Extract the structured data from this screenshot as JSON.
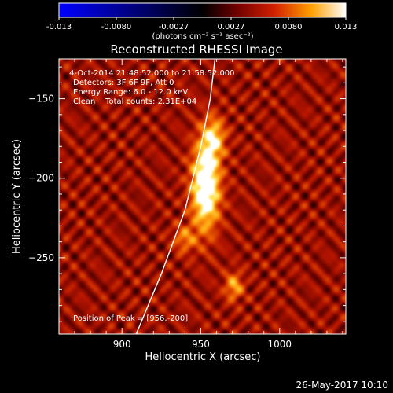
{
  "colorbar": {
    "ticks": [
      "-0.013",
      "-0.0080",
      "-0.0027",
      "0.0027",
      "0.0080",
      "0.013"
    ],
    "unit_label": "(photons cm⁻² s⁻¹ asec⁻²)"
  },
  "plot": {
    "title": "Reconstructed RHESSI Image",
    "info_lines": [
      "4-Oct-2014 21:48:52.000 to 21:58:52.000",
      "Detectors: 3F 6F 9F, Att 0",
      "Energy Range: 6.0 - 12.0 keV",
      "Clean    Total counts: 2.31E+04"
    ],
    "peak_label": "Position of Peak = [956,-200]",
    "footer_date": "26-May-2017 10:10"
  },
  "chart_data": {
    "type": "heatmap",
    "title": "Reconstructed RHESSI Image",
    "xlabel": "Heliocentric X (arcsec)",
    "ylabel": "Heliocentric Y (arcsec)",
    "xlim": [
      860,
      1042
    ],
    "ylim": [
      -298,
      -125
    ],
    "x_ticks": [
      900,
      950,
      1000
    ],
    "y_ticks": [
      -150,
      -200,
      -250
    ],
    "colorbar_range": [
      -0.013,
      0.013
    ],
    "colormap": [
      "#0000ff",
      "#000080",
      "#000000",
      "#5a0000",
      "#c81e00",
      "#ff7a00",
      "#ffd040",
      "#ffffff"
    ],
    "peak": {
      "x": 956,
      "y": -200
    },
    "sources": [
      {
        "x": 953,
        "y": -205,
        "amp": 1.0,
        "sx": 6,
        "sy": 18
      },
      {
        "x": 958,
        "y": -175,
        "amp": 0.55,
        "sx": 5,
        "sy": 9
      },
      {
        "x": 971,
        "y": -268,
        "amp": 0.45,
        "sx": 4,
        "sy": 6
      },
      {
        "x": 940,
        "y": -238,
        "amp": 0.35,
        "sx": 5,
        "sy": 6
      }
    ],
    "limb": [
      {
        "x": 909,
        "y": -298
      },
      {
        "x": 925,
        "y": -260
      },
      {
        "x": 940,
        "y": -220
      },
      {
        "x": 950,
        "y": -180
      },
      {
        "x": 956,
        "y": -150
      },
      {
        "x": 959,
        "y": -125
      }
    ]
  }
}
